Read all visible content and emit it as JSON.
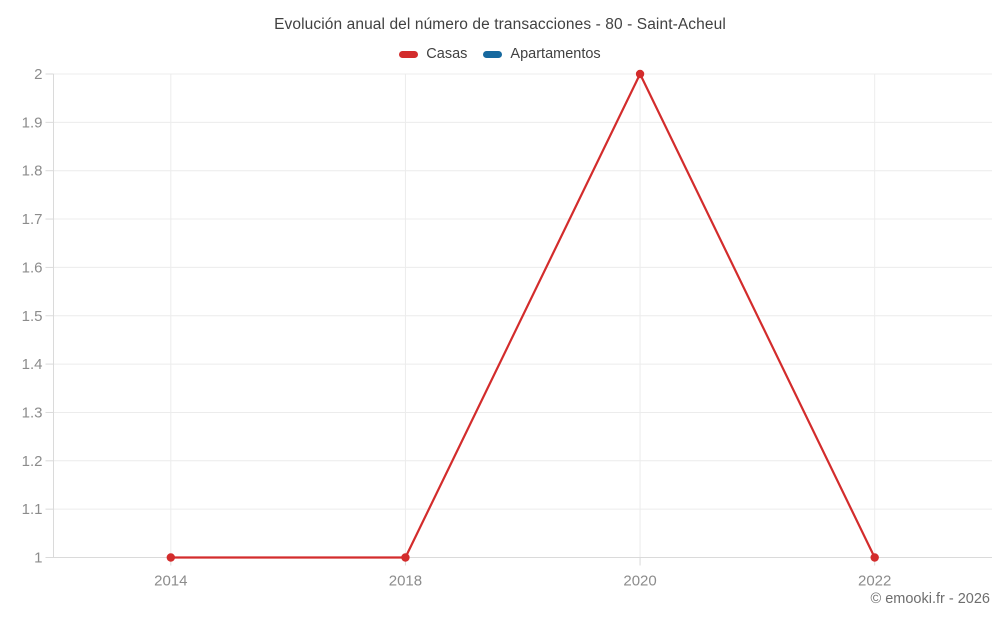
{
  "chart_data": {
    "type": "line",
    "title": "Evolución anual del número de transacciones - 80 - Saint-Acheul",
    "categories": [
      "2014",
      "2018",
      "2020",
      "2022"
    ],
    "series": [
      {
        "name": "Casas",
        "color": "#d32c2c",
        "values": [
          1,
          1,
          2,
          1
        ]
      },
      {
        "name": "Apartamentos",
        "color": "#17699f",
        "values": []
      }
    ],
    "ylim": [
      1,
      2
    ],
    "ytick_labels": [
      "1",
      "1.1",
      "1.2",
      "1.3",
      "1.4",
      "1.5",
      "1.6",
      "1.7",
      "1.8",
      "1.9",
      "2"
    ],
    "ytick_values": [
      1,
      1.1,
      1.2,
      1.3,
      1.4,
      1.5,
      1.6,
      1.7,
      1.8,
      1.9,
      2
    ],
    "grid": true,
    "legend_position": "top",
    "xlabel": "",
    "ylabel": "",
    "colors": {
      "grid_line": "#ececec",
      "axis_line": "#dadada",
      "tick_label": "#8c8c8c"
    }
  },
  "footer": {
    "credit": "© emooki.fr - 2026"
  }
}
